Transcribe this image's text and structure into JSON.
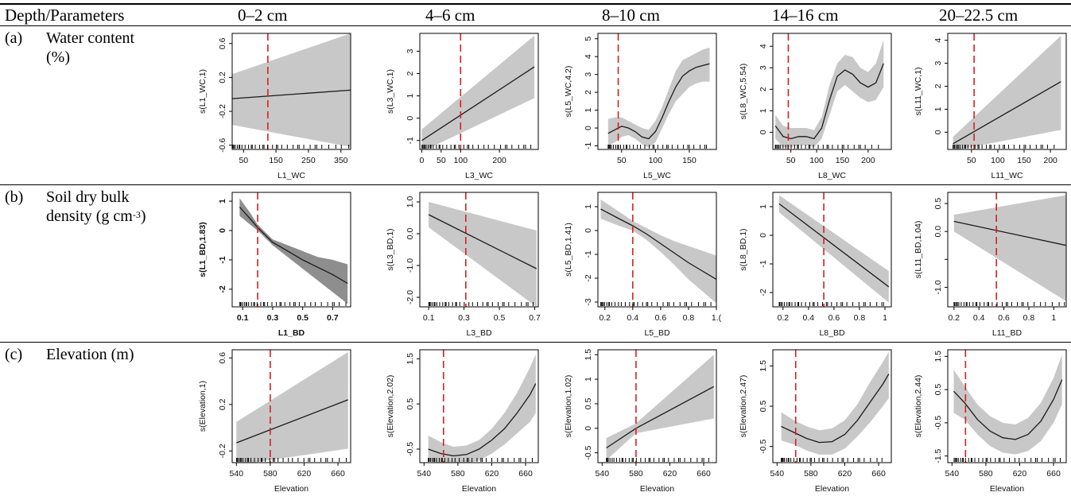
{
  "header": {
    "row_label": "Depth/Parameters",
    "columns": [
      "0–2 cm",
      "4–6 cm",
      "8–10 cm",
      "14–16 cm",
      "20–22.5 cm"
    ]
  },
  "rows": [
    {
      "letter": "(a)",
      "line1": "Water content",
      "line2": "(%)",
      "line2_sup": ""
    },
    {
      "letter": "(b)",
      "line1": "Soil dry bulk",
      "line2": "density (g cm",
      "line2_sup": "-3",
      "line2_end": ")"
    },
    {
      "letter": "(c)",
      "line1": "Elevation (m)",
      "line2": "",
      "line2_sup": ""
    }
  ],
  "colors": {
    "band": "#c8c8c8",
    "band_dark": "#8e8e8e",
    "line": "#1a1a1a",
    "vline": "#d62020",
    "axis": "#000000"
  },
  "chart_data": [
    {
      "type": "line",
      "row": 0,
      "col": 0,
      "xlabel": "L1_WC",
      "ylabel": "s(L1_WC,1)",
      "bold": false,
      "xlim": [
        15,
        380
      ],
      "ylim": [
        -0.65,
        0.72
      ],
      "xticks": [
        50,
        150,
        250,
        350
      ],
      "yticks": [
        -0.6,
        -0.2,
        0.2,
        0.6
      ],
      "vline": 125,
      "x": [
        15,
        380
      ],
      "y": [
        -0.05,
        0.05
      ],
      "upper": [
        0.24,
        0.72
      ],
      "lower": [
        -0.36,
        -0.62
      ]
    },
    {
      "type": "line",
      "row": 0,
      "col": 1,
      "xlabel": "L3_WC",
      "ylabel": "s(L3_WC,1)",
      "bold": false,
      "xlim": [
        -5,
        300
      ],
      "ylim": [
        -1.4,
        3.8
      ],
      "xticks": [
        0,
        50,
        100,
        200
      ],
      "yticks": [
        -1,
        0,
        1,
        2,
        3
      ],
      "vline": 100,
      "x": [
        0,
        290
      ],
      "y": [
        -1.0,
        2.3
      ],
      "upper": [
        -0.5,
        3.7
      ],
      "lower": [
        -1.5,
        0.9
      ]
    },
    {
      "type": "line",
      "row": 0,
      "col": 2,
      "xlabel": "L5_WC",
      "ylabel": "s(L5_WC,4.2)",
      "bold": false,
      "xlim": [
        15,
        190
      ],
      "ylim": [
        -1.2,
        5.3
      ],
      "xticks": [
        50,
        100,
        150
      ],
      "yticks": [
        -1,
        0,
        1,
        2,
        3,
        4,
        5
      ],
      "vline": 45,
      "x": [
        30,
        40,
        50,
        60,
        70,
        80,
        90,
        100,
        110,
        120,
        130,
        140,
        150,
        160,
        170,
        180
      ],
      "y": [
        -0.3,
        -0.1,
        0.1,
        0.0,
        -0.2,
        -0.5,
        -0.6,
        -0.2,
        0.6,
        1.5,
        2.3,
        2.9,
        3.2,
        3.4,
        3.5,
        3.6
      ],
      "upper": [
        0.5,
        0.6,
        0.6,
        0.4,
        0.2,
        0.0,
        -0.1,
        0.4,
        1.2,
        2.2,
        3.2,
        3.8,
        4.0,
        4.2,
        4.4,
        4.5
      ],
      "lower": [
        -1.0,
        -0.8,
        -0.5,
        -0.4,
        -0.6,
        -0.9,
        -1.1,
        -0.8,
        0.0,
        0.8,
        1.5,
        1.9,
        2.3,
        2.5,
        2.6,
        2.6
      ]
    },
    {
      "type": "line",
      "row": 0,
      "col": 3,
      "xlabel": "L8_WC",
      "ylabel": "s(L8_WC,5.54)",
      "bold": false,
      "xlim": [
        15,
        245
      ],
      "ylim": [
        -0.8,
        4.6
      ],
      "xticks": [
        50,
        100,
        150,
        200
      ],
      "yticks": [
        0,
        1,
        2,
        3,
        4
      ],
      "vline": 45,
      "x": [
        20,
        35,
        50,
        65,
        80,
        95,
        110,
        125,
        140,
        155,
        170,
        185,
        200,
        215,
        230
      ],
      "y": [
        0.3,
        -0.2,
        -0.3,
        -0.2,
        -0.2,
        -0.3,
        0.2,
        1.5,
        2.6,
        2.9,
        2.7,
        2.3,
        2.1,
        2.3,
        3.2
      ],
      "upper": [
        0.8,
        0.3,
        0.2,
        0.2,
        0.2,
        0.1,
        0.7,
        2.2,
        3.2,
        3.6,
        3.5,
        3.0,
        2.8,
        3.2,
        4.3
      ],
      "lower": [
        -0.3,
        -0.7,
        -0.7,
        -0.6,
        -0.6,
        -0.7,
        -0.3,
        0.8,
        1.9,
        2.2,
        1.9,
        1.6,
        1.4,
        1.5,
        2.1
      ]
    },
    {
      "type": "line",
      "row": 0,
      "col": 4,
      "xlabel": "L11_WC",
      "ylabel": "s(L11_WC,1)",
      "bold": false,
      "xlim": [
        5,
        230
      ],
      "ylim": [
        -0.75,
        4.3
      ],
      "xticks": [
        50,
        100,
        150,
        200
      ],
      "yticks": [
        0,
        1,
        2,
        3,
        4
      ],
      "vline": 55,
      "x": [
        15,
        220
      ],
      "y": [
        -0.5,
        2.2
      ],
      "upper": [
        -0.2,
        4.2
      ],
      "lower": [
        -0.8,
        0.1
      ]
    },
    {
      "type": "line",
      "row": 1,
      "col": 0,
      "xlabel": "L1_BD",
      "ylabel": "s(L1_BD,1.83)",
      "bold": true,
      "xlim": [
        0.03,
        0.82
      ],
      "ylim": [
        -2.6,
        1.3
      ],
      "xticks": [
        0.1,
        0.3,
        0.5,
        0.7
      ],
      "yticks": [
        -2,
        -1,
        0,
        1
      ],
      "vline": 0.2,
      "x": [
        0.08,
        0.15,
        0.2,
        0.3,
        0.4,
        0.5,
        0.6,
        0.7,
        0.8
      ],
      "y": [
        0.8,
        0.4,
        0.1,
        -0.4,
        -0.7,
        -1.0,
        -1.25,
        -1.5,
        -1.8
      ],
      "upper": [
        1.1,
        0.6,
        0.2,
        -0.3,
        -0.5,
        -0.7,
        -0.9,
        -1.0,
        -1.15
      ],
      "lower": [
        0.5,
        0.2,
        0.0,
        -0.5,
        -0.9,
        -1.3,
        -1.7,
        -2.1,
        -2.5
      ]
    },
    {
      "type": "line",
      "row": 1,
      "col": 1,
      "xlabel": "L3_BD",
      "ylabel": "s(L3_BD,1)",
      "bold": false,
      "xlim": [
        0.05,
        0.72
      ],
      "ylim": [
        -2.3,
        1.3
      ],
      "xticks": [
        0.1,
        0.3,
        0.5,
        0.7
      ],
      "yticks": [
        -2,
        -1,
        0,
        1
      ],
      "yticklabels": [
        "-2.0",
        "-1.0",
        "0.0",
        "1.0"
      ],
      "vline": 0.31,
      "x": [
        0.1,
        0.71
      ],
      "y": [
        0.6,
        -1.1
      ],
      "upper": [
        1.0,
        0.1
      ],
      "lower": [
        0.2,
        -2.3
      ]
    },
    {
      "type": "line",
      "row": 1,
      "col": 2,
      "xlabel": "L5_BD",
      "ylabel": "s(L5_BD,1.41)",
      "bold": false,
      "xlim": [
        0.15,
        1.0
      ],
      "ylim": [
        -3.2,
        1.6
      ],
      "xticks": [
        0.2,
        0.4,
        0.6,
        0.8,
        1.0
      ],
      "yticks": [
        -3,
        -2,
        -1,
        0,
        1
      ],
      "xticklabels": [
        "0.2",
        "0.4",
        "0.6",
        "0.8",
        "1.("
      ],
      "vline": 0.4,
      "x": [
        0.17,
        0.3,
        0.4,
        0.5,
        0.6,
        0.7,
        0.8,
        0.9,
        1.0
      ],
      "y": [
        0.9,
        0.5,
        0.2,
        -0.15,
        -0.55,
        -0.95,
        -1.35,
        -1.7,
        -2.05
      ],
      "upper": [
        1.3,
        0.8,
        0.4,
        0.1,
        -0.2,
        -0.45,
        -0.65,
        -0.85,
        -1.05
      ],
      "lower": [
        0.5,
        0.2,
        0.0,
        -0.4,
        -0.9,
        -1.45,
        -2.05,
        -2.55,
        -3.05
      ]
    },
    {
      "type": "line",
      "row": 1,
      "col": 3,
      "xlabel": "L8_BD",
      "ylabel": "s(L8_BD,1)",
      "bold": false,
      "xlim": [
        0.12,
        1.05
      ],
      "ylim": [
        -2.5,
        1.5
      ],
      "xticks": [
        0.2,
        0.4,
        0.6,
        0.8,
        1.0
      ],
      "yticks": [
        -2,
        -1,
        0,
        1
      ],
      "vline": 0.52,
      "x": [
        0.17,
        1.03
      ],
      "y": [
        1.1,
        -1.8
      ],
      "upper": [
        1.4,
        -1.25
      ],
      "lower": [
        0.8,
        -2.35
      ]
    },
    {
      "type": "line",
      "row": 1,
      "col": 4,
      "xlabel": "L11_BD",
      "ylabel": "s(L11_BD,1.04)",
      "bold": false,
      "xlim": [
        0.15,
        1.1
      ],
      "ylim": [
        -1.35,
        0.7
      ],
      "xticks": [
        0.2,
        0.4,
        0.6,
        0.8,
        1.0
      ],
      "yticks": [
        -1.0,
        -0.5,
        0.0,
        0.5
      ],
      "yticklabels": [
        "-1.0",
        "",
        "0.0",
        "0.5"
      ],
      "vline": 0.54,
      "x": [
        0.2,
        1.1
      ],
      "y": [
        0.18,
        -0.25
      ],
      "upper": [
        0.3,
        0.65
      ],
      "lower": [
        0.0,
        -1.25
      ]
    },
    {
      "type": "line",
      "row": 2,
      "col": 0,
      "xlabel": "Elevation",
      "ylabel": "s(Elevation,1)",
      "bold": false,
      "xlim": [
        535,
        675
      ],
      "ylim": [
        -0.3,
        0.67
      ],
      "xticks": [
        540,
        580,
        620,
        660
      ],
      "yticks": [
        -0.2,
        0.2,
        0.6
      ],
      "vline": 580,
      "x": [
        540,
        672
      ],
      "y": [
        -0.13,
        0.24
      ],
      "upper": [
        0.05,
        0.65
      ],
      "lower": [
        -0.32,
        -0.18
      ]
    },
    {
      "type": "line",
      "row": 2,
      "col": 1,
      "xlabel": "Elevation",
      "ylabel": "s(Elevation,2.02)",
      "bold": false,
      "xlim": [
        535,
        675
      ],
      "ylim": [
        -0.8,
        1.7
      ],
      "xticks": [
        540,
        580,
        620,
        660
      ],
      "yticks": [
        -0.5,
        0.5,
        1.5
      ],
      "vline": 563,
      "x": [
        545,
        560,
        575,
        590,
        605,
        620,
        635,
        650,
        665,
        672
      ],
      "y": [
        -0.5,
        -0.6,
        -0.65,
        -0.62,
        -0.5,
        -0.3,
        -0.05,
        0.3,
        0.7,
        0.95
      ],
      "upper": [
        -0.2,
        -0.35,
        -0.45,
        -0.42,
        -0.3,
        -0.05,
        0.3,
        0.75,
        1.3,
        1.6
      ],
      "lower": [
        -0.75,
        -0.85,
        -0.85,
        -0.82,
        -0.75,
        -0.6,
        -0.4,
        -0.15,
        0.1,
        0.3
      ]
    },
    {
      "type": "line",
      "row": 2,
      "col": 2,
      "xlabel": "Elevation",
      "ylabel": "s(Elevation,1.02)",
      "bold": false,
      "xlim": [
        535,
        675
      ],
      "ylim": [
        -0.7,
        1.6
      ],
      "xticks": [
        540,
        580,
        620,
        660
      ],
      "yticks": [
        -0.5,
        0.0,
        0.5,
        1.0,
        1.5
      ],
      "vline": 580,
      "x": [
        545,
        580,
        672
      ],
      "y": [
        -0.4,
        0.0,
        0.85
      ],
      "upper": [
        -0.2,
        0.1,
        1.5
      ],
      "lower": [
        -0.65,
        -0.1,
        0.2
      ]
    },
    {
      "type": "line",
      "row": 2,
      "col": 3,
      "xlabel": "Elevation",
      "ylabel": "s(Elevation,2.47)",
      "bold": false,
      "xlim": [
        535,
        675
      ],
      "ylim": [
        -0.9,
        1.9
      ],
      "xticks": [
        540,
        580,
        620,
        660
      ],
      "yticks": [
        -0.5,
        0.5,
        1.5
      ],
      "vline": 562,
      "x": [
        545,
        560,
        575,
        590,
        605,
        620,
        635,
        650,
        665,
        672
      ],
      "y": [
        0.0,
        -0.15,
        -0.3,
        -0.4,
        -0.38,
        -0.2,
        0.15,
        0.6,
        1.05,
        1.3
      ],
      "upper": [
        0.35,
        0.15,
        0.0,
        -0.1,
        -0.05,
        0.15,
        0.55,
        1.1,
        1.6,
        1.85
      ],
      "lower": [
        -0.35,
        -0.45,
        -0.6,
        -0.7,
        -0.7,
        -0.55,
        -0.25,
        0.1,
        0.5,
        0.7
      ]
    },
    {
      "type": "line",
      "row": 2,
      "col": 4,
      "xlabel": "Elevation",
      "ylabel": "s(Elevation,2.44)",
      "bold": false,
      "xlim": [
        535,
        675
      ],
      "ylim": [
        -1.7,
        1.7
      ],
      "xticks": [
        540,
        580,
        620,
        660
      ],
      "yticks": [
        -1.5,
        -0.5,
        0.5,
        1.5
      ],
      "vline": 556,
      "x": [
        542,
        555,
        570,
        585,
        600,
        615,
        630,
        645,
        660,
        670
      ],
      "y": [
        0.45,
        0.1,
        -0.4,
        -0.75,
        -0.95,
        -1.0,
        -0.85,
        -0.45,
        0.2,
        0.8
      ],
      "upper": [
        1.1,
        0.6,
        0.05,
        -0.3,
        -0.5,
        -0.55,
        -0.35,
        0.1,
        0.85,
        1.55
      ],
      "lower": [
        -0.2,
        -0.4,
        -0.85,
        -1.2,
        -1.4,
        -1.45,
        -1.35,
        -1.05,
        -0.5,
        0.05
      ]
    }
  ]
}
